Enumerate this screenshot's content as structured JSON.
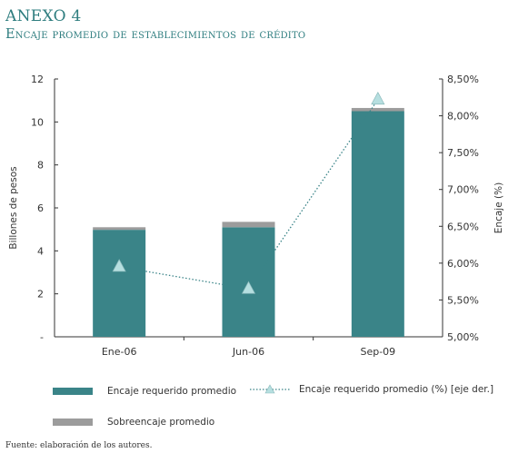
{
  "header": {
    "annex": "ANEXO 4",
    "subtitle": "Encaje promedio de establecimientos de crédito"
  },
  "legend": {
    "item1": "Encaje requerido promedio",
    "item2": "Encaje requerido promedio (%) [eje der.]",
    "item3": "Sobreencaje promedio"
  },
  "source": "Fuente: elaboración de los autores.",
  "colors": {
    "teal": "#3a8488",
    "gray": "#9c9c9c",
    "title": "#2e7d7f",
    "marker": "#b6dfe0",
    "line": "#3a8488"
  },
  "chart_data": {
    "type": "bar",
    "categories": [
      "Ene-06",
      "Jun-06",
      "Sep-09"
    ],
    "series": [
      {
        "name": "Encaje requerido promedio",
        "values": [
          4.98,
          5.1,
          10.5
        ]
      },
      {
        "name": "Sobreencaje promedio",
        "values": [
          0.12,
          0.25,
          0.15
        ]
      },
      {
        "name": "Encaje requerido promedio (%) [eje der.]",
        "values": [
          5.95,
          5.65,
          8.22
        ],
        "axis": "right"
      }
    ],
    "ylabel": "Billones de pesos",
    "ylabel_right": "Encaje (%)",
    "ylim": [
      0,
      12
    ],
    "ylim_right": [
      5.0,
      8.5
    ],
    "yticks_left": [
      "-",
      "2",
      "4",
      "6",
      "8",
      "10",
      "12"
    ],
    "yticks_right": [
      "5,00%",
      "5,50%",
      "6,00%",
      "6,50%",
      "7,00%",
      "7,50%",
      "8,00%",
      "8,50%"
    ],
    "grid": false
  }
}
